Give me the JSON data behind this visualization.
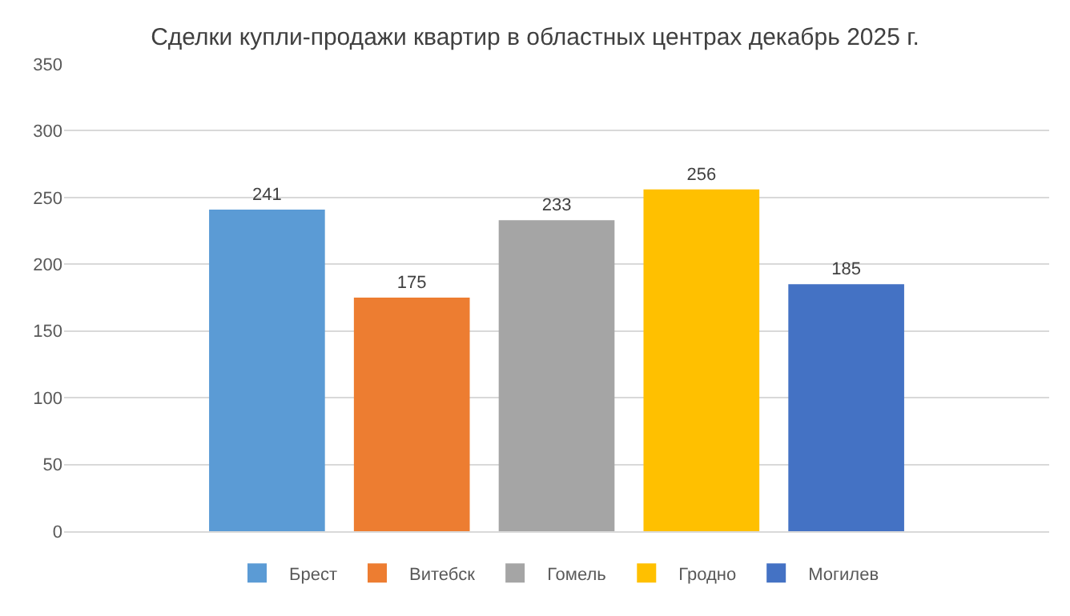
{
  "chart_data": {
    "type": "bar",
    "title": "Сделки купли-продажи квартир в областных центрах декабрь 2025 г.",
    "categories": [
      null
    ],
    "series": [
      {
        "name": "Брест",
        "color": "#5b9bd5",
        "values": [
          241
        ]
      },
      {
        "name": "Витебск",
        "color": "#ed7d31",
        "values": [
          175
        ]
      },
      {
        "name": "Гомель",
        "color": "#a5a5a5",
        "values": [
          233
        ]
      },
      {
        "name": "Гродно",
        "color": "#ffc000",
        "values": [
          256
        ]
      },
      {
        "name": "Могилев",
        "color": "#4472c4",
        "values": [
          185
        ]
      }
    ],
    "ylim": [
      0,
      350
    ],
    "yticks": [
      0,
      50,
      100,
      150,
      200,
      250,
      300,
      350
    ],
    "grid": "y",
    "legend": "bottom",
    "tick_labels": "y",
    "data_labels": true
  }
}
